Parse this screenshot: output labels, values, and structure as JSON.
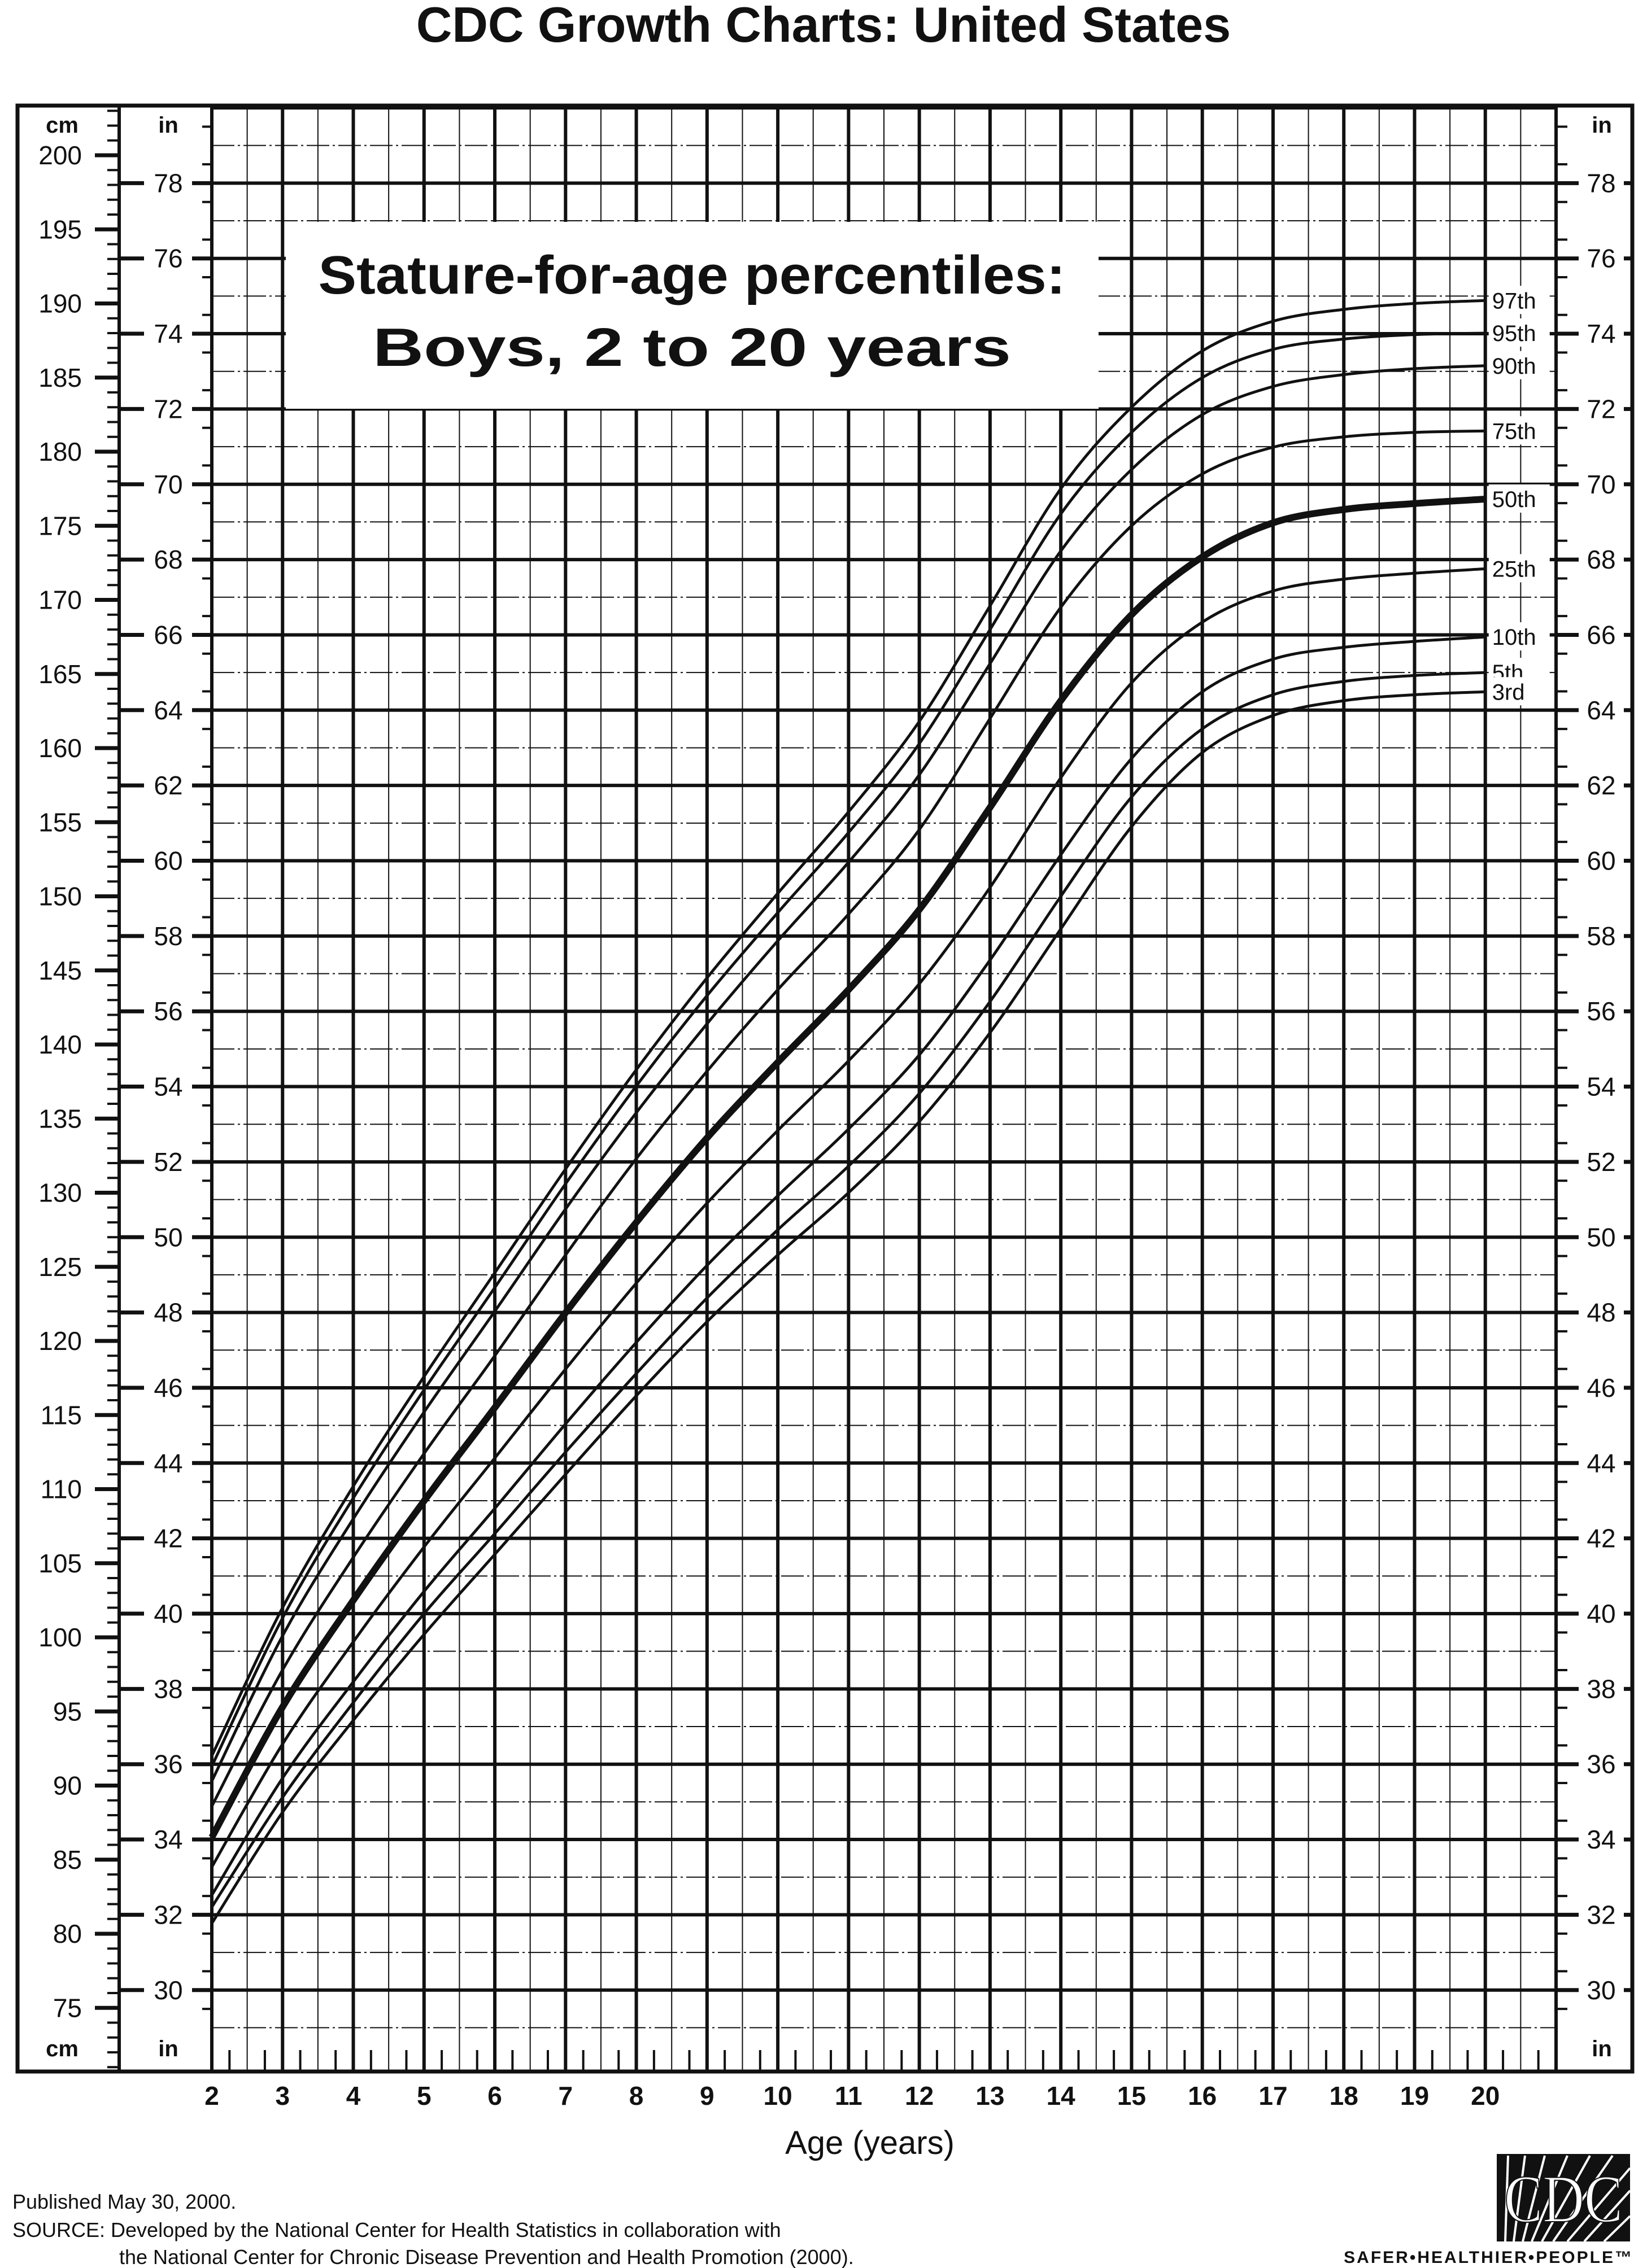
{
  "header": {
    "title": "CDC Growth Charts: United States"
  },
  "chart_box": {
    "line1": "Stature-for-age percentiles:",
    "line2": "Boys, 2 to 20 years"
  },
  "axes": {
    "cm_label_top": "cm",
    "in_label_top": "in",
    "in_label_top_right": "in",
    "cm_label_bottom": "cm",
    "in_label_bottom": "in",
    "in_label_bottom_right": "in",
    "x_label": "Age (years)"
  },
  "footer": {
    "published": "Published May 30, 2000.",
    "source_line1": "SOURCE: Developed by the National Center for Health Statistics in collaboration with",
    "source_line2": "the National Center for Chronic Disease Prevention and Health Promotion (2000).",
    "logo_text": "CDC",
    "tagline": "SAFER•HEALTHIER•PEOPLE™"
  },
  "colors": {
    "ink": "#111111",
    "paper": "#ffffff"
  },
  "chart_data": {
    "type": "line",
    "title": "Stature-for-age percentiles: Boys, 2 to 20 years",
    "xlabel": "Age (years)",
    "xlim": [
      2,
      21
    ],
    "ylim_cm": [
      70.7,
      203.4
    ],
    "x_ticks": [
      2,
      3,
      4,
      5,
      6,
      7,
      8,
      9,
      10,
      11,
      12,
      13,
      14,
      15,
      16,
      17,
      18,
      19,
      20
    ],
    "cm_ticks": [
      75,
      80,
      85,
      90,
      95,
      100,
      105,
      110,
      115,
      120,
      125,
      130,
      135,
      140,
      145,
      150,
      155,
      160,
      165,
      170,
      175,
      180,
      185,
      190,
      195,
      200
    ],
    "in_ticks": [
      30,
      32,
      34,
      36,
      38,
      40,
      42,
      44,
      46,
      48,
      50,
      52,
      54,
      56,
      58,
      60,
      62,
      64,
      66,
      68,
      70,
      72,
      74,
      76,
      78
    ],
    "grid": true,
    "ages": [
      2,
      3,
      4,
      5,
      6,
      7,
      8,
      9,
      10,
      11,
      12,
      13,
      14,
      15,
      16,
      17,
      18,
      19,
      20
    ],
    "series": [
      {
        "name": "97th",
        "values": [
          92.0,
          102.0,
          110.2,
          117.6,
          124.6,
          131.6,
          138.3,
          144.5,
          150.2,
          155.7,
          161.8,
          169.6,
          177.5,
          183.0,
          186.8,
          188.8,
          189.6,
          190.0,
          190.2
        ]
      },
      {
        "name": "95th",
        "values": [
          91.3,
          101.3,
          109.4,
          116.7,
          123.6,
          130.6,
          137.2,
          143.3,
          148.9,
          154.3,
          160.3,
          168.0,
          175.8,
          181.3,
          185.0,
          186.9,
          187.6,
          187.9,
          188.0
        ]
      },
      {
        "name": "90th",
        "values": [
          90.3,
          100.1,
          108.0,
          115.2,
          122.0,
          128.9,
          135.4,
          141.4,
          147.0,
          152.3,
          158.2,
          165.7,
          173.3,
          178.8,
          182.5,
          184.4,
          185.2,
          185.6,
          185.8
        ]
      },
      {
        "name": "75th",
        "values": [
          88.6,
          97.8,
          105.4,
          112.4,
          119.0,
          125.8,
          132.3,
          138.2,
          143.7,
          148.8,
          154.5,
          162.0,
          169.5,
          175.0,
          178.5,
          180.3,
          181.0,
          181.3,
          181.4
        ]
      },
      {
        "name": "50th",
        "values": [
          86.5,
          95.3,
          102.5,
          109.2,
          115.5,
          121.9,
          128.0,
          133.7,
          138.8,
          143.7,
          149.1,
          156.0,
          163.2,
          169.0,
          172.9,
          175.2,
          176.1,
          176.5,
          176.8
        ]
      },
      {
        "name": "25th",
        "values": [
          84.5,
          92.8,
          99.7,
          106.1,
          112.1,
          118.1,
          123.9,
          129.3,
          134.2,
          138.9,
          144.1,
          150.6,
          158.0,
          164.4,
          168.5,
          170.6,
          171.4,
          171.8,
          172.1
        ]
      },
      {
        "name": "10th",
        "values": [
          82.6,
          90.5,
          97.0,
          103.1,
          108.7,
          114.4,
          119.9,
          125.1,
          129.8,
          134.3,
          139.3,
          145.7,
          152.8,
          159.3,
          163.8,
          166.0,
          166.8,
          167.2,
          167.5
        ]
      },
      {
        "name": "5th",
        "values": [
          81.8,
          89.2,
          95.6,
          101.6,
          107.0,
          112.5,
          117.8,
          122.9,
          127.5,
          131.8,
          136.7,
          142.9,
          150.0,
          156.7,
          161.3,
          163.6,
          164.5,
          164.9,
          165.1
        ]
      },
      {
        "name": "3rd",
        "values": [
          80.7,
          88.2,
          94.4,
          100.2,
          105.6,
          111.0,
          116.3,
          121.3,
          125.8,
          130.0,
          134.8,
          140.8,
          147.8,
          154.7,
          159.7,
          162.2,
          163.2,
          163.6,
          163.8
        ]
      }
    ]
  }
}
